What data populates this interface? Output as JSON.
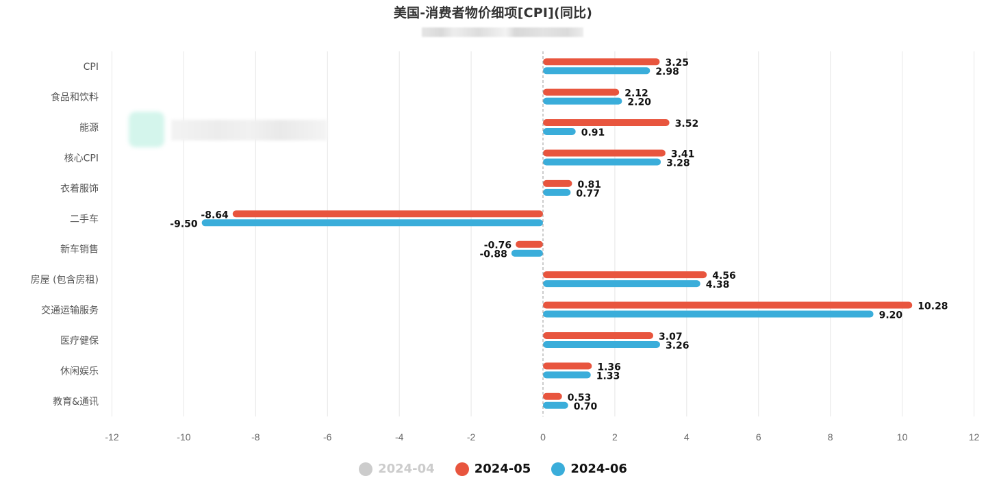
{
  "chart_data": {
    "type": "bar",
    "orientation": "horizontal",
    "title": "美国-消费者物价细项[CPI](同比)",
    "subtitle": "",
    "xlabel": "",
    "ylabel": "",
    "xlim": [
      -12,
      12
    ],
    "x_ticks": [
      -12,
      -10,
      -8,
      -6,
      -4,
      -2,
      0,
      2,
      4,
      6,
      8,
      10,
      12
    ],
    "grid": true,
    "legend_position": "bottom",
    "categories": [
      "CPI",
      "食品和饮料",
      "能源",
      "核心CPI",
      "衣着服饰",
      "二手车",
      "新车销售",
      "房屋 (包含房租)",
      "交通运输服务",
      "医疗健保",
      "休闲娱乐",
      "教育&通讯"
    ],
    "series": [
      {
        "name": "2024-04",
        "color": "#cccccc",
        "visible": false,
        "values": []
      },
      {
        "name": "2024-05",
        "color": "#e8553e",
        "visible": true,
        "values": [
          3.25,
          2.12,
          3.52,
          3.41,
          0.81,
          -8.64,
          -0.76,
          4.56,
          10.28,
          3.07,
          1.36,
          0.53
        ]
      },
      {
        "name": "2024-06",
        "color": "#3aadda",
        "visible": true,
        "values": [
          2.98,
          2.2,
          0.91,
          3.28,
          0.77,
          -9.5,
          -0.88,
          4.38,
          9.2,
          3.26,
          1.33,
          0.7
        ]
      }
    ]
  },
  "header": {
    "title": "美国-消费者物价细项[CPI](同比)"
  },
  "legend": {
    "items": [
      {
        "label": "2024-04",
        "color": "#cccccc",
        "text_color": "#cccccc",
        "active": false
      },
      {
        "label": "2024-05",
        "color": "#e8553e",
        "text_color": "#111111",
        "active": true
      },
      {
        "label": "2024-06",
        "color": "#3aadda",
        "text_color": "#111111",
        "active": true
      }
    ]
  },
  "colors": {
    "grid": "#e6e6e6",
    "axis_label": "#666666",
    "category_label": "#555555",
    "zero_line": "#999999",
    "value_label": "#111111"
  }
}
